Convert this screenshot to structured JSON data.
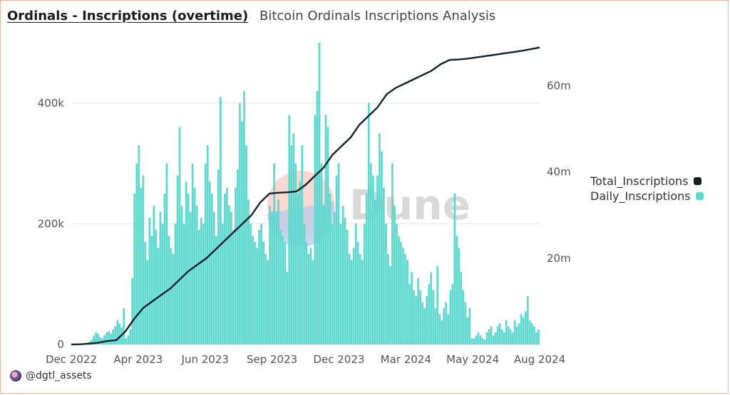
{
  "header": {
    "title": "Ordinals - Inscriptions (overtime)",
    "subtitle": "Bitcoin Ordinals Inscriptions Analysis"
  },
  "footer": {
    "handle": "@dgtl_assets"
  },
  "watermark": "Dune",
  "colors": {
    "daily": "#5fd8cf",
    "total": "#10222e",
    "grid": "#e6e6e6",
    "border": "#f2b6a0"
  },
  "chart_data": {
    "type": "bar+line",
    "title": "Ordinals - Inscriptions (overtime)",
    "x_tick_labels": [
      "Dec 2022",
      "Apr 2023",
      "Jun 2023",
      "Sep 2023",
      "Dec 2023",
      "Mar 2024",
      "May 2024",
      "Aug 2024"
    ],
    "y_left_ticks": [
      "0",
      "200k",
      "400k"
    ],
    "y_left_range": [
      0,
      500000
    ],
    "y_right_ticks": [
      "20m",
      "40m",
      "60m"
    ],
    "y_right_range": [
      0,
      70000000
    ],
    "grid": true,
    "legend_position": "right",
    "series": [
      {
        "name": "Total_Inscriptions",
        "kind": "line",
        "axis": "right",
        "values": [
          0,
          50000,
          200000,
          400000,
          800000,
          1000000,
          3000000,
          6000000,
          8500000,
          10000000,
          11500000,
          13000000,
          15000000,
          17000000,
          18500000,
          20000000,
          22000000,
          24000000,
          26000000,
          28000000,
          30000000,
          33000000,
          35000000,
          35200000,
          35300000,
          35500000,
          37000000,
          39000000,
          41000000,
          44000000,
          46000000,
          48000000,
          51000000,
          53000000,
          55000000,
          58000000,
          59500000,
          60500000,
          61500000,
          62500000,
          63500000,
          65000000,
          66000000,
          66100000,
          66300000,
          66600000,
          66900000,
          67200000,
          67500000,
          67800000,
          68100000,
          68500000,
          68900000
        ]
      },
      {
        "name": "Daily_Inscriptions",
        "kind": "bar",
        "axis": "left",
        "values": [
          0,
          0,
          0,
          0,
          0,
          0,
          2000,
          3000,
          5000,
          8000,
          15000,
          20000,
          18000,
          12000,
          10000,
          15000,
          20000,
          22000,
          18000,
          25000,
          30000,
          40000,
          35000,
          28000,
          60000,
          10000,
          15000,
          25000,
          110000,
          250000,
          300000,
          330000,
          260000,
          280000,
          170000,
          140000,
          210000,
          180000,
          230000,
          190000,
          160000,
          220000,
          200000,
          250000,
          300000,
          180000,
          160000,
          150000,
          200000,
          280000,
          360000,
          230000,
          200000,
          270000,
          250000,
          220000,
          300000,
          260000,
          230000,
          190000,
          210000,
          200000,
          300000,
          330000,
          270000,
          250000,
          220000,
          180000,
          290000,
          410000,
          200000,
          250000,
          260000,
          230000,
          220000,
          190000,
          260000,
          290000,
          400000,
          370000,
          420000,
          330000,
          240000,
          200000,
          180000,
          170000,
          160000,
          190000,
          200000,
          170000,
          150000,
          140000,
          230000,
          220000,
          300000,
          220000,
          240000,
          190000,
          180000,
          170000,
          120000,
          380000,
          330000,
          350000,
          300000,
          250000,
          270000,
          330000,
          200000,
          170000,
          150000,
          160000,
          140000,
          380000,
          420000,
          500000,
          300000,
          230000,
          380000,
          360000,
          250000,
          200000,
          220000,
          280000,
          300000,
          200000,
          230000,
          210000,
          190000,
          150000,
          140000,
          160000,
          200000,
          170000,
          150000,
          140000,
          200000,
          250000,
          400000,
          300000,
          280000,
          240000,
          280000,
          350000,
          320000,
          260000,
          200000,
          150000,
          130000,
          300000,
          230000,
          200000,
          180000,
          170000,
          160000,
          150000,
          140000,
          100000,
          120000,
          90000,
          80000,
          110000,
          90000,
          70000,
          60000,
          80000,
          100000,
          120000,
          90000,
          60000,
          130000,
          50000,
          40000,
          60000,
          70000,
          50000,
          90000,
          100000,
          250000,
          180000,
          160000,
          120000,
          90000,
          70000,
          45000,
          60000,
          10000,
          10000,
          15000,
          20000,
          15000,
          10000,
          8000,
          20000,
          25000,
          30000,
          15000,
          20000,
          30000,
          35000,
          25000,
          20000,
          40000,
          30000,
          25000,
          20000,
          40000,
          30000,
          35000,
          50000,
          45000,
          55000,
          80000,
          40000,
          35000,
          30000,
          20000,
          25000
        ]
      }
    ]
  }
}
